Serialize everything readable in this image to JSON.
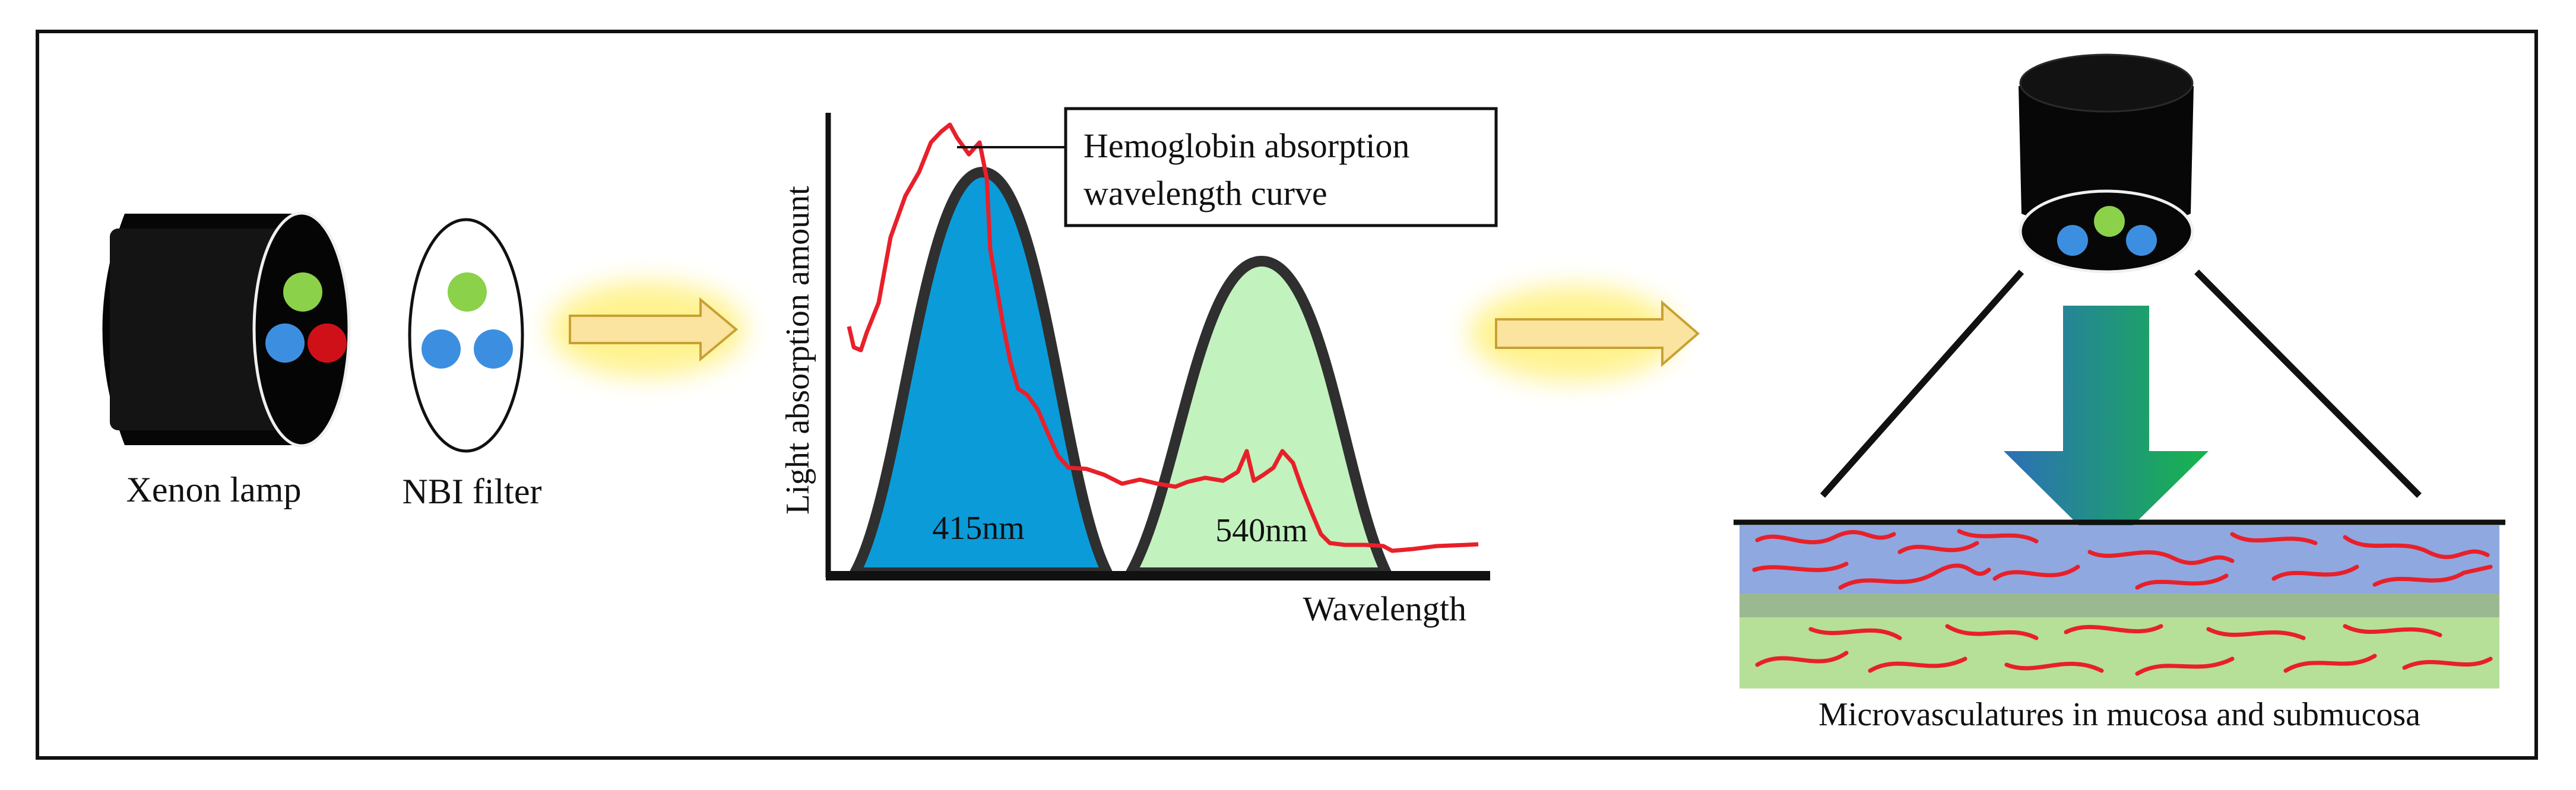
{
  "components": {
    "xenon_lamp": {
      "label": "Xenon lamp"
    },
    "nbi_filter": {
      "label": "NBI filter"
    }
  },
  "absorption_chart": {
    "ylabel": "Light absorption amount",
    "xlabel": "Wavelength",
    "callout": {
      "line1": "Hemoglobin absorption",
      "line2": "wavelength curve"
    },
    "peaks": [
      {
        "label": "415nm",
        "color": "#0B9BD8"
      },
      {
        "label": "540nm",
        "color": "#C2F2BE"
      }
    ]
  },
  "tissue": {
    "caption": "Microvasculatures in mucosa and submucosa",
    "mucosa_color": "#8FA8E0",
    "submucosa_color": "#B6DF98",
    "vessel_color": "#E8202A"
  },
  "colors": {
    "blue_light": "#3C8FE0",
    "green_light": "#8BD14A",
    "red_light": "#D01018",
    "arrow_fill": "#FBE3A0",
    "arrow_glow": "#FFF07A"
  }
}
